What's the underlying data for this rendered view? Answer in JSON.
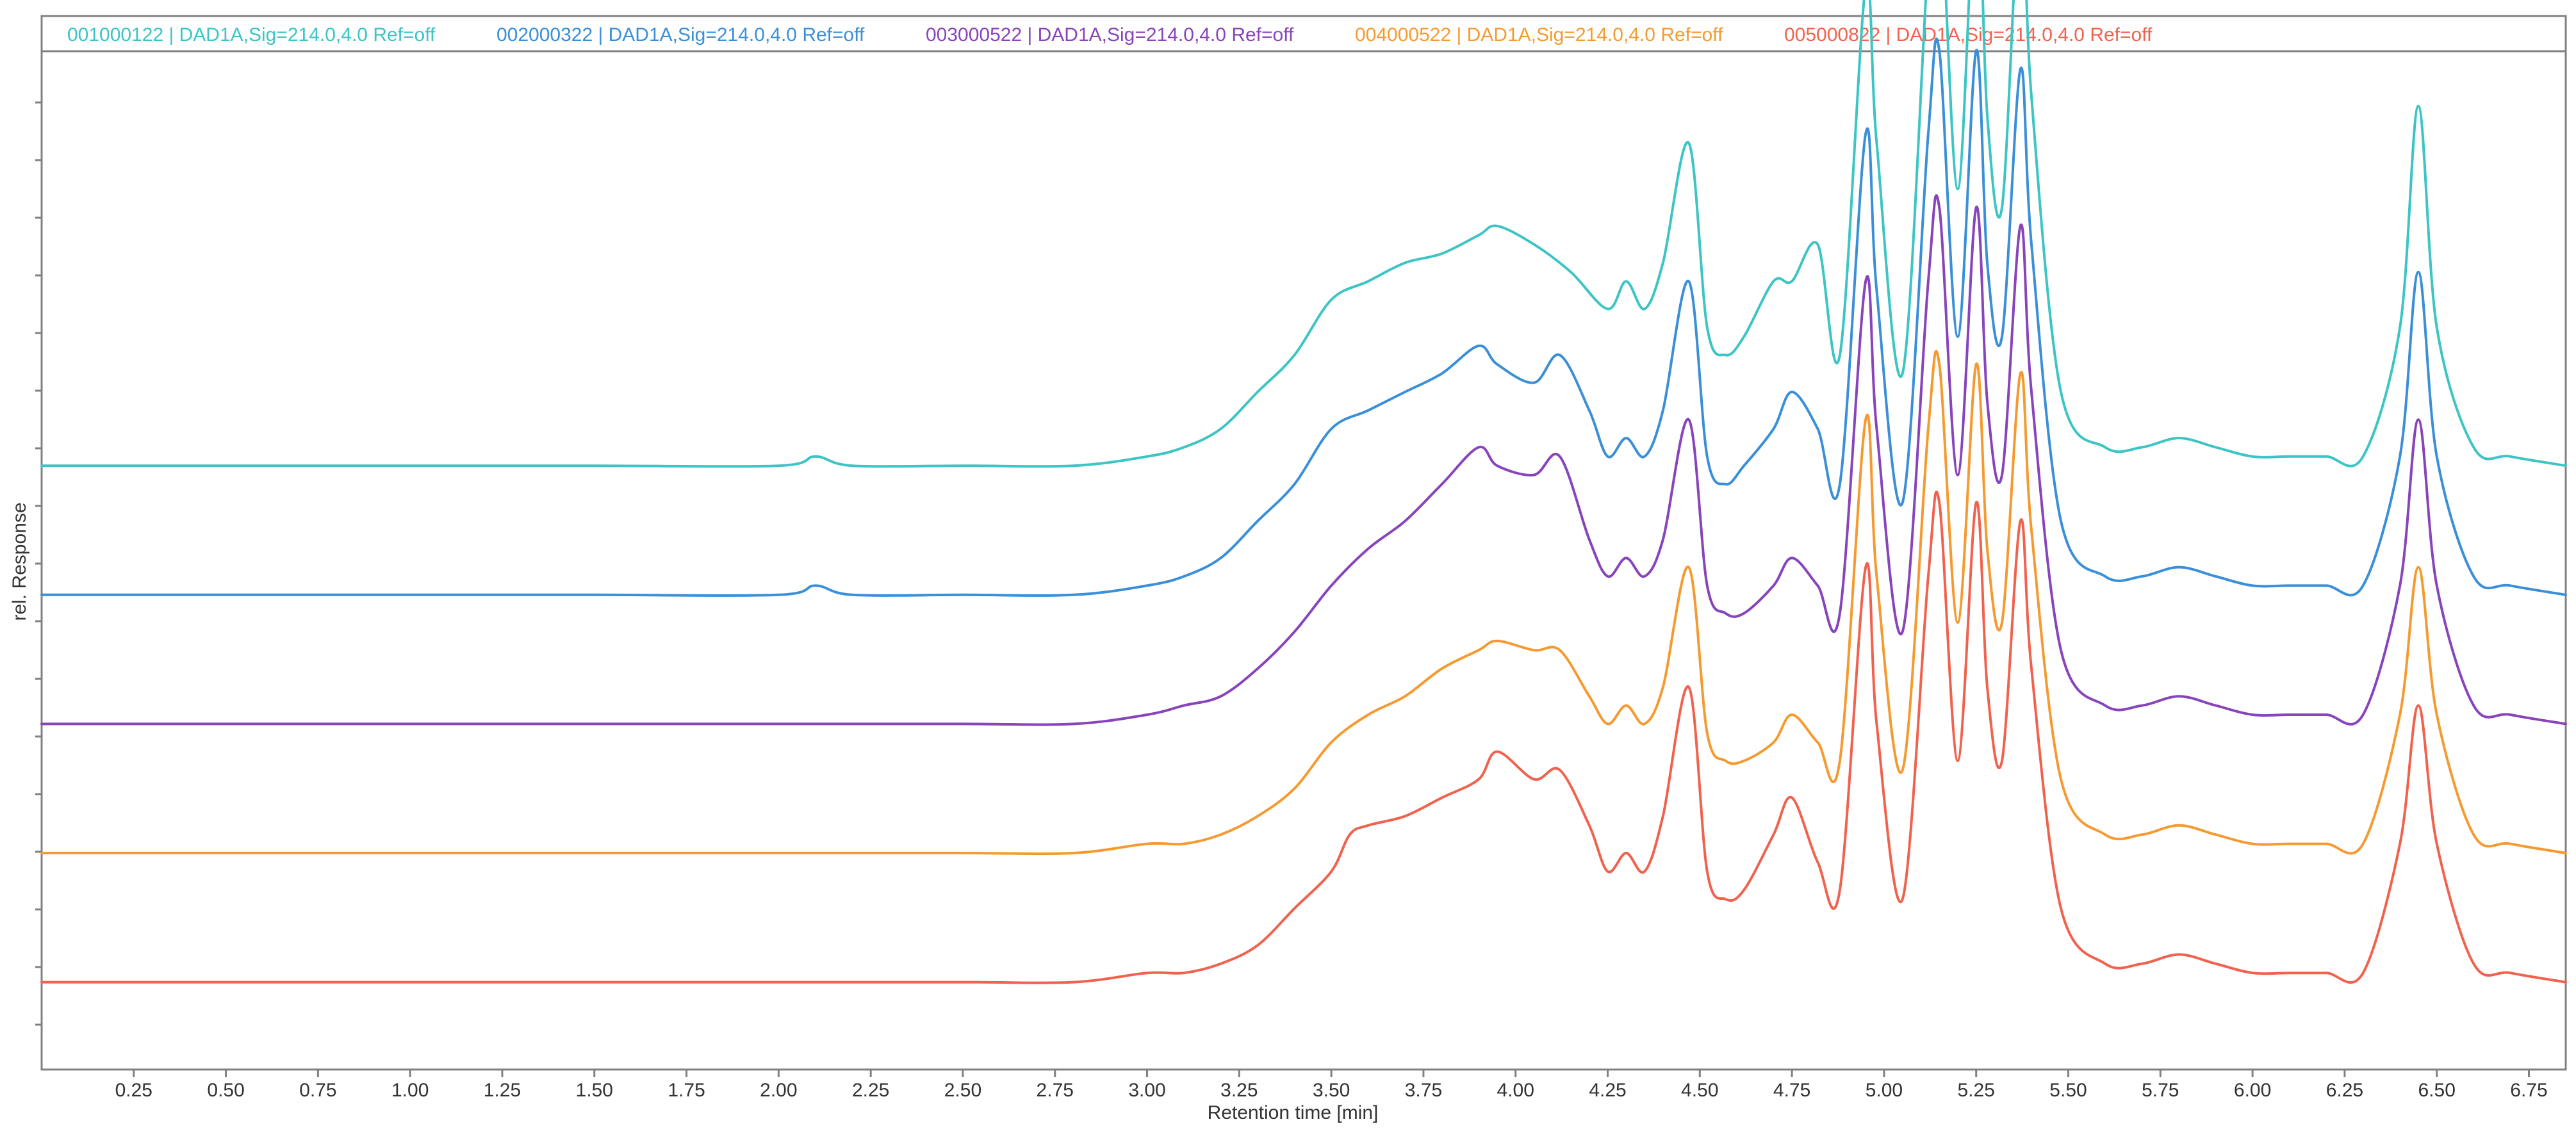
{
  "chart_data": {
    "type": "line",
    "title": "",
    "xlabel": "Retention time [min]",
    "ylabel": "rel. Response",
    "xlim": [
      0,
      6.85
    ],
    "ylim": [
      0,
      1
    ],
    "grid": false,
    "legend_position": "top",
    "x_ticks": [
      "0.25",
      "0.50",
      "0.75",
      "1.00",
      "1.25",
      "1.50",
      "1.75",
      "2.00",
      "2.25",
      "2.50",
      "2.75",
      "3.00",
      "3.25",
      "3.50",
      "3.75",
      "4.00",
      "4.25",
      "4.50",
      "4.75",
      "5.00",
      "5.25",
      "5.50",
      "5.75",
      "6.00",
      "6.25",
      "6.50",
      "6.75"
    ],
    "series": [
      {
        "name": "001000122 | DAD1A,Sig=214.0,4.0 Ref=off",
        "color": "#3dc4c4",
        "stack_offset": 0.62,
        "x": [
          0,
          0.5,
          1.0,
          1.5,
          2.0,
          2.1,
          2.2,
          2.5,
          2.8,
          3.0,
          3.1,
          3.2,
          3.3,
          3.4,
          3.5,
          3.6,
          3.7,
          3.8,
          3.9,
          3.95,
          4.05,
          4.15,
          4.25,
          4.3,
          4.35,
          4.4,
          4.47,
          4.52,
          4.57,
          4.62,
          4.7,
          4.75,
          4.82,
          4.88,
          4.95,
          4.98,
          5.05,
          5.12,
          5.15,
          5.2,
          5.25,
          5.28,
          5.32,
          5.37,
          5.4,
          5.48,
          5.6,
          5.7,
          5.8,
          5.9,
          6.0,
          6.1,
          6.2,
          6.3,
          6.4,
          6.45,
          6.5,
          6.6,
          6.7,
          6.85
        ],
        "y": [
          0,
          0,
          0,
          0,
          0,
          0.01,
          0,
          0,
          0,
          0.01,
          0.02,
          0.04,
          0.08,
          0.12,
          0.18,
          0.2,
          0.22,
          0.23,
          0.25,
          0.26,
          0.24,
          0.21,
          0.17,
          0.2,
          0.17,
          0.22,
          0.35,
          0.15,
          0.12,
          0.14,
          0.2,
          0.2,
          0.24,
          0.12,
          0.52,
          0.35,
          0.1,
          0.55,
          0.64,
          0.3,
          0.64,
          0.38,
          0.28,
          0.62,
          0.4,
          0.08,
          0.02,
          0.02,
          0.03,
          0.02,
          0.01,
          0.01,
          0.01,
          0.01,
          0.15,
          0.39,
          0.15,
          0.02,
          0.01,
          0
        ]
      },
      {
        "name": "002000322 | DAD1A,Sig=214.0,4.0 Ref=off",
        "color": "#3a8fd8",
        "stack_offset": 0.48,
        "x": [
          0,
          0.5,
          1.0,
          1.5,
          2.0,
          2.1,
          2.2,
          2.5,
          2.8,
          3.0,
          3.1,
          3.2,
          3.3,
          3.4,
          3.5,
          3.6,
          3.7,
          3.8,
          3.9,
          3.95,
          4.05,
          4.12,
          4.2,
          4.25,
          4.3,
          4.35,
          4.4,
          4.47,
          4.52,
          4.57,
          4.62,
          4.7,
          4.75,
          4.82,
          4.88,
          4.95,
          4.98,
          5.05,
          5.12,
          5.15,
          5.2,
          5.25,
          5.28,
          5.32,
          5.37,
          5.4,
          5.48,
          5.6,
          5.7,
          5.8,
          5.9,
          6.0,
          6.1,
          6.2,
          6.3,
          6.4,
          6.45,
          6.5,
          6.6,
          6.7,
          6.85
        ],
        "y": [
          0,
          0,
          0,
          0,
          0,
          0.01,
          0,
          0,
          0,
          0.01,
          0.02,
          0.04,
          0.08,
          0.12,
          0.18,
          0.2,
          0.22,
          0.24,
          0.27,
          0.25,
          0.23,
          0.26,
          0.2,
          0.15,
          0.17,
          0.15,
          0.2,
          0.34,
          0.15,
          0.12,
          0.14,
          0.18,
          0.22,
          0.18,
          0.12,
          0.5,
          0.33,
          0.1,
          0.5,
          0.59,
          0.28,
          0.59,
          0.36,
          0.28,
          0.57,
          0.38,
          0.08,
          0.02,
          0.02,
          0.03,
          0.02,
          0.01,
          0.01,
          0.01,
          0.01,
          0.15,
          0.35,
          0.15,
          0.02,
          0.01,
          0
        ]
      },
      {
        "name": "003000522 | DAD1A,Sig=214.0,4.0 Ref=off",
        "color": "#8844bb",
        "stack_offset": 0.34,
        "x": [
          0,
          0.5,
          1.0,
          1.5,
          2.0,
          2.5,
          2.8,
          3.0,
          3.1,
          3.2,
          3.3,
          3.4,
          3.5,
          3.6,
          3.7,
          3.8,
          3.9,
          3.95,
          4.05,
          4.12,
          4.2,
          4.25,
          4.3,
          4.35,
          4.4,
          4.47,
          4.52,
          4.57,
          4.62,
          4.7,
          4.75,
          4.82,
          4.88,
          4.95,
          4.98,
          5.05,
          5.12,
          5.15,
          5.2,
          5.25,
          5.28,
          5.32,
          5.37,
          5.4,
          5.48,
          5.6,
          5.7,
          5.8,
          5.9,
          6.0,
          6.1,
          6.2,
          6.3,
          6.4,
          6.45,
          6.5,
          6.6,
          6.7,
          6.85
        ],
        "y": [
          0,
          0,
          0,
          0,
          0,
          0,
          0,
          0.01,
          0.02,
          0.03,
          0.06,
          0.1,
          0.15,
          0.19,
          0.22,
          0.26,
          0.3,
          0.28,
          0.27,
          0.29,
          0.2,
          0.16,
          0.18,
          0.16,
          0.2,
          0.33,
          0.15,
          0.12,
          0.12,
          0.15,
          0.18,
          0.15,
          0.12,
          0.48,
          0.32,
          0.1,
          0.48,
          0.56,
          0.27,
          0.56,
          0.35,
          0.27,
          0.54,
          0.36,
          0.08,
          0.02,
          0.02,
          0.03,
          0.02,
          0.01,
          0.01,
          0.01,
          0.01,
          0.15,
          0.33,
          0.15,
          0.02,
          0.01,
          0
        ]
      },
      {
        "name": "004000522 | DAD1A,Sig=214.0,4.0 Ref=off",
        "color": "#f59a30",
        "stack_offset": 0.2,
        "x": [
          0,
          0.5,
          1.0,
          1.5,
          2.0,
          2.5,
          2.8,
          3.0,
          3.1,
          3.2,
          3.3,
          3.4,
          3.5,
          3.6,
          3.7,
          3.8,
          3.9,
          3.95,
          4.05,
          4.12,
          4.2,
          4.25,
          4.3,
          4.35,
          4.4,
          4.47,
          4.52,
          4.57,
          4.62,
          4.7,
          4.75,
          4.82,
          4.88,
          4.95,
          4.98,
          5.05,
          5.12,
          5.15,
          5.2,
          5.25,
          5.28,
          5.32,
          5.37,
          5.4,
          5.48,
          5.6,
          5.7,
          5.8,
          5.9,
          6.0,
          6.1,
          6.2,
          6.3,
          6.4,
          6.45,
          6.5,
          6.6,
          6.7,
          6.85
        ],
        "y": [
          0,
          0,
          0,
          0,
          0,
          0,
          0,
          0.01,
          0.01,
          0.02,
          0.04,
          0.07,
          0.12,
          0.15,
          0.17,
          0.2,
          0.22,
          0.23,
          0.22,
          0.22,
          0.17,
          0.14,
          0.16,
          0.14,
          0.18,
          0.31,
          0.13,
          0.1,
          0.1,
          0.12,
          0.15,
          0.12,
          0.1,
          0.47,
          0.3,
          0.09,
          0.46,
          0.53,
          0.25,
          0.53,
          0.33,
          0.25,
          0.52,
          0.35,
          0.08,
          0.02,
          0.02,
          0.03,
          0.02,
          0.01,
          0.01,
          0.01,
          0.01,
          0.15,
          0.31,
          0.15,
          0.02,
          0.01,
          0
        ]
      },
      {
        "name": "005000822 | DAD1A,Sig=214.0,4.0 Ref=off",
        "color": "#f0624e",
        "stack_offset": 0.06,
        "x": [
          0,
          0.5,
          1.0,
          1.5,
          2.0,
          2.5,
          2.8,
          3.0,
          3.1,
          3.2,
          3.3,
          3.4,
          3.5,
          3.55,
          3.6,
          3.7,
          3.8,
          3.9,
          3.95,
          4.05,
          4.12,
          4.2,
          4.25,
          4.3,
          4.35,
          4.4,
          4.47,
          4.52,
          4.57,
          4.62,
          4.7,
          4.75,
          4.82,
          4.88,
          4.95,
          4.98,
          5.05,
          5.12,
          5.15,
          5.2,
          5.25,
          5.28,
          5.32,
          5.37,
          5.4,
          5.48,
          5.6,
          5.7,
          5.8,
          5.9,
          6.0,
          6.1,
          6.2,
          6.3,
          6.4,
          6.45,
          6.5,
          6.6,
          6.7,
          6.85
        ],
        "y": [
          0,
          0,
          0,
          0,
          0,
          0,
          0,
          0.01,
          0.01,
          0.02,
          0.04,
          0.08,
          0.12,
          0.16,
          0.17,
          0.18,
          0.2,
          0.22,
          0.25,
          0.22,
          0.23,
          0.17,
          0.12,
          0.14,
          0.12,
          0.18,
          0.32,
          0.12,
          0.09,
          0.1,
          0.16,
          0.2,
          0.13,
          0.1,
          0.45,
          0.28,
          0.09,
          0.44,
          0.52,
          0.24,
          0.52,
          0.32,
          0.24,
          0.5,
          0.34,
          0.08,
          0.02,
          0.02,
          0.03,
          0.02,
          0.01,
          0.01,
          0.01,
          0.01,
          0.15,
          0.3,
          0.15,
          0.02,
          0.01,
          0
        ]
      }
    ]
  }
}
